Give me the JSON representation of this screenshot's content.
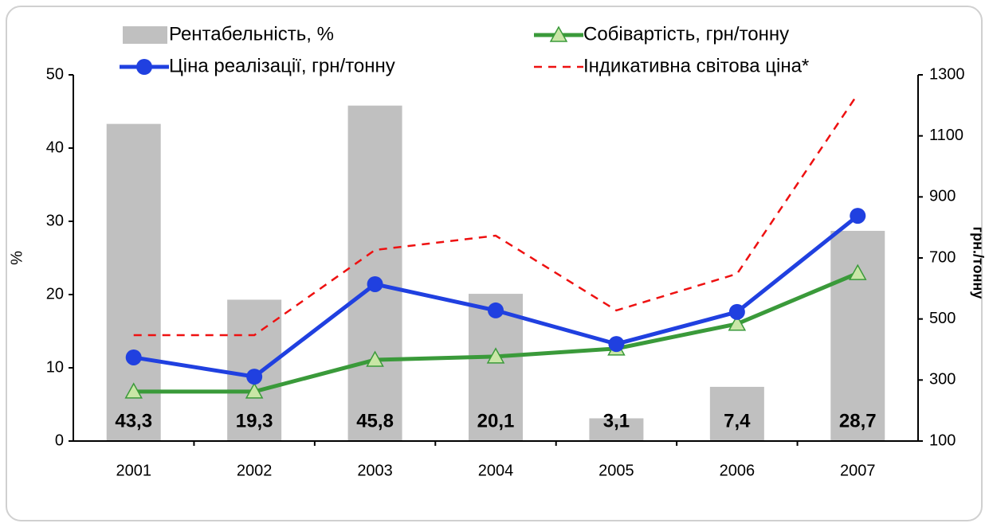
{
  "chart_data": {
    "type": "bar-line",
    "categories": [
      "2001",
      "2002",
      "2003",
      "2004",
      "2005",
      "2006",
      "2007"
    ],
    "ylabel": "%",
    "y2label": "грн./тонну",
    "ylim": [
      0,
      50
    ],
    "yticks": [
      0,
      10,
      20,
      30,
      40,
      50
    ],
    "y2lim": [
      100,
      1300
    ],
    "y2ticks": [
      100,
      300,
      500,
      700,
      900,
      1100,
      1300
    ],
    "series": [
      {
        "name": "Рентабельність, %",
        "kind": "bar",
        "color": "#c0c0c0",
        "values": [
          43.3,
          19.3,
          45.8,
          20.1,
          3.1,
          7.4,
          28.7
        ],
        "value_labels": [
          "43,3",
          "19,3",
          "45,8",
          "20,1",
          "3,1",
          "7,4",
          "28,7"
        ]
      },
      {
        "name": "Собівартість, грн/тонну",
        "kind": "line",
        "marker": "triangle",
        "color": "#3a9a3a",
        "axis": "y2",
        "values": [
          262,
          262,
          366,
          377,
          403,
          484,
          650
        ]
      },
      {
        "name": "Ціна реалізації, грн/тонну",
        "kind": "line",
        "marker": "circle",
        "color": "#2040e0",
        "axis": "y2",
        "values": [
          374,
          311,
          614,
          528,
          418,
          523,
          838
        ]
      },
      {
        "name": "Індикативна світова ціна*",
        "kind": "dashed",
        "color": "#ee1111",
        "axis": "y2",
        "values": [
          447,
          447,
          726,
          773,
          528,
          648,
          1237
        ]
      }
    ]
  }
}
